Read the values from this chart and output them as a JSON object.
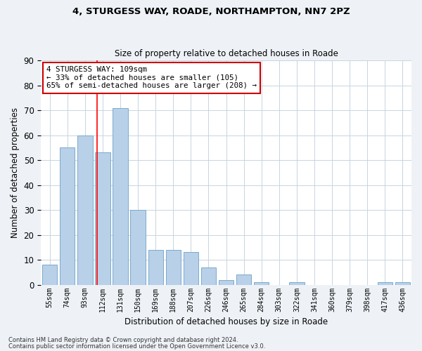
{
  "title1": "4, STURGESS WAY, ROADE, NORTHAMPTON, NN7 2PZ",
  "title2": "Size of property relative to detached houses in Roade",
  "xlabel": "Distribution of detached houses by size in Roade",
  "ylabel": "Number of detached properties",
  "categories": [
    "55sqm",
    "74sqm",
    "93sqm",
    "112sqm",
    "131sqm",
    "150sqm",
    "169sqm",
    "188sqm",
    "207sqm",
    "226sqm",
    "246sqm",
    "265sqm",
    "284sqm",
    "303sqm",
    "322sqm",
    "341sqm",
    "360sqm",
    "379sqm",
    "398sqm",
    "417sqm",
    "436sqm"
  ],
  "values": [
    8,
    55,
    60,
    53,
    71,
    30,
    14,
    14,
    13,
    7,
    2,
    4,
    1,
    0,
    1,
    0,
    0,
    0,
    0,
    1,
    1
  ],
  "bar_color": "#b8d0e8",
  "bar_edge_color": "#7aabcc",
  "bar_width": 0.85,
  "red_line_x": 2.67,
  "ylim": [
    0,
    90
  ],
  "yticks": [
    0,
    10,
    20,
    30,
    40,
    50,
    60,
    70,
    80,
    90
  ],
  "annotation_line1": "4 STURGESS WAY: 109sqm",
  "annotation_line2": "← 33% of detached houses are smaller (105)",
  "annotation_line3": "65% of semi-detached houses are larger (208) →",
  "annotation_box_color": "#ffffff",
  "annotation_box_edge": "#cc0000",
  "footer1": "Contains HM Land Registry data © Crown copyright and database right 2024.",
  "footer2": "Contains public sector information licensed under the Open Government Licence v3.0.",
  "bg_color": "#eef2f7",
  "plot_bg_color": "#ffffff",
  "grid_color": "#c8d4e0"
}
